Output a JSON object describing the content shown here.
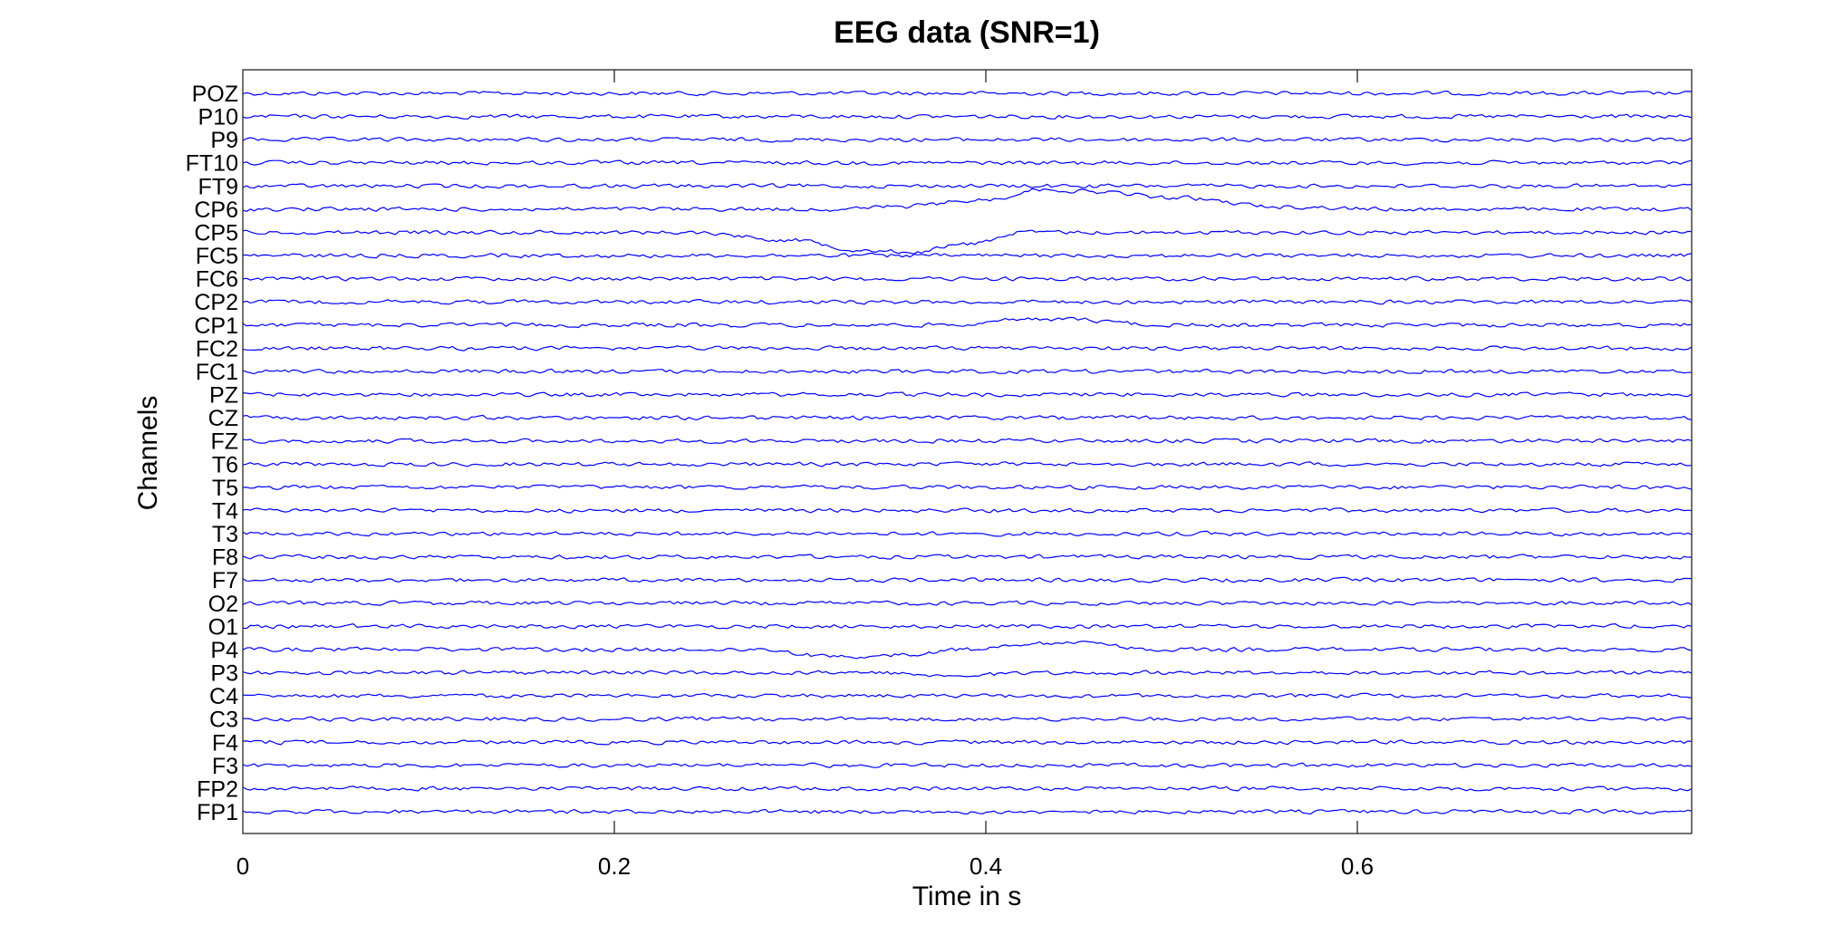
{
  "chart_data": {
    "type": "line",
    "title": "EEG data (SNR=1)",
    "xlabel": "Time in s",
    "ylabel": "Channels",
    "xlim": [
      0,
      0.78
    ],
    "xticks": [
      0,
      0.2,
      0.4,
      0.6
    ],
    "xtick_labels": [
      "0",
      "0.2",
      "0.4",
      "0.6"
    ],
    "grid": false,
    "channels": [
      "POZ",
      "P10",
      "P9",
      "FT10",
      "FT9",
      "CP6",
      "CP5",
      "FC5",
      "FC6",
      "CP2",
      "CP1",
      "FC2",
      "FC1",
      "PZ",
      "CZ",
      "FZ",
      "T6",
      "T5",
      "T4",
      "T3",
      "F8",
      "F7",
      "O2",
      "O1",
      "P4",
      "P3",
      "C4",
      "C3",
      "F4",
      "F3",
      "FP2",
      "FP1"
    ],
    "series_color": "#0000ff",
    "noise_amplitude": 0.12,
    "events": [
      {
        "channel": "CP6",
        "shape": [
          [
            0.32,
            0.0
          ],
          [
            0.35,
            -0.1
          ],
          [
            0.4,
            -0.4
          ],
          [
            0.43,
            -0.85
          ],
          [
            0.46,
            -0.75
          ],
          [
            0.5,
            -0.5
          ],
          [
            0.56,
            -0.1
          ],
          [
            0.62,
            0.0
          ]
        ]
      },
      {
        "channel": "CP5",
        "shape": [
          [
            0.24,
            0.0
          ],
          [
            0.3,
            0.35
          ],
          [
            0.33,
            0.75
          ],
          [
            0.36,
            0.85
          ],
          [
            0.39,
            0.5
          ],
          [
            0.42,
            0.0
          ]
        ]
      },
      {
        "channel": "CP1",
        "shape": [
          [
            0.38,
            0.0
          ],
          [
            0.41,
            -0.2
          ],
          [
            0.44,
            -0.25
          ],
          [
            0.5,
            0.0
          ]
        ]
      },
      {
        "channel": "P4",
        "shape": [
          [
            0.28,
            0.0
          ],
          [
            0.31,
            0.25
          ],
          [
            0.33,
            0.35
          ],
          [
            0.36,
            0.2
          ],
          [
            0.39,
            0.0
          ],
          [
            0.42,
            -0.25
          ],
          [
            0.45,
            -0.3
          ],
          [
            0.49,
            0.0
          ]
        ]
      },
      {
        "channel": "P3",
        "shape": [
          [
            0.34,
            0.0
          ],
          [
            0.38,
            0.12
          ],
          [
            0.41,
            0.05
          ],
          [
            0.45,
            0.0
          ]
        ]
      }
    ]
  }
}
